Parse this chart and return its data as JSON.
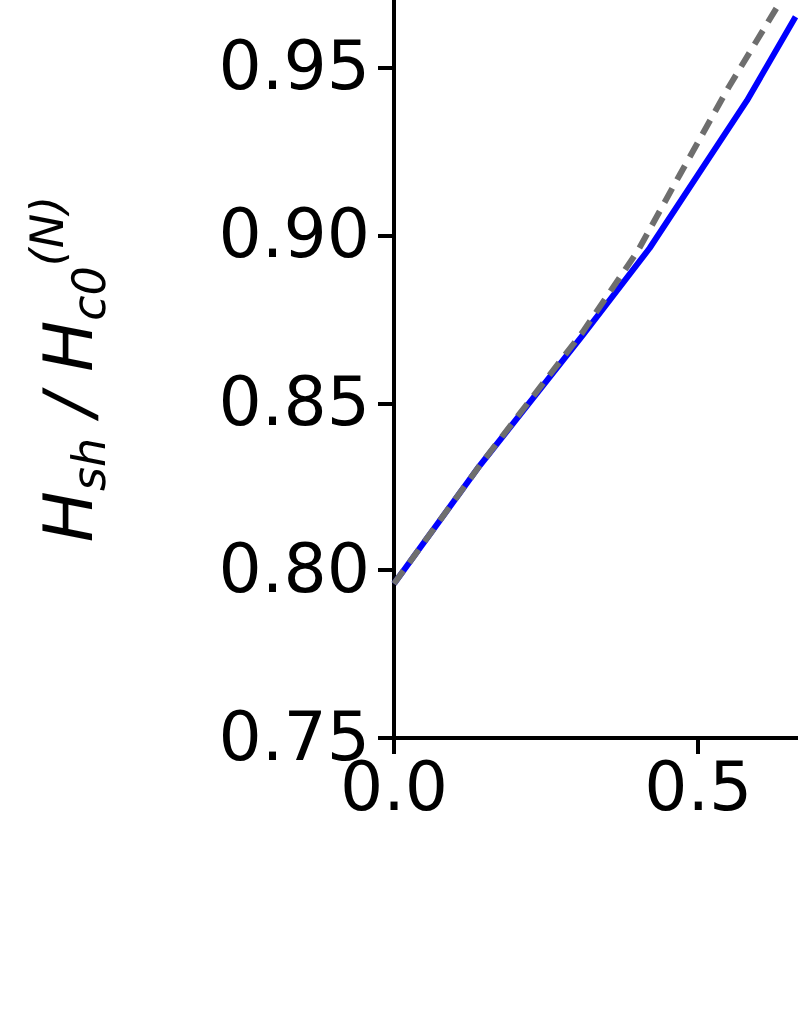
{
  "chart_data": {
    "type": "line",
    "ylabel": "H$_{sh}$ / H$_{c0}$$^{(N)}$",
    "xlim": [
      0,
      0.664
    ],
    "ylim": [
      0.75,
      0.97
    ],
    "xticks": [
      {
        "value": 0,
        "label": "0.0"
      },
      {
        "value": 0.5,
        "label": "0.5"
      }
    ],
    "yticks": [
      {
        "value": 0.75,
        "label": "0.75"
      },
      {
        "value": 0.8,
        "label": "0.80"
      },
      {
        "value": 0.85,
        "label": "0.85"
      },
      {
        "value": 0.9,
        "label": "0.90"
      },
      {
        "value": 0.95,
        "label": "0.95"
      }
    ],
    "marker": "none",
    "series": [
      {
        "color": "#0000ff",
        "line_style": "solid",
        "x": [
          0,
          0.14,
          0.31,
          0.42,
          0.5,
          0.58,
          0.66
        ],
        "values": [
          0.796,
          0.831,
          0.87,
          0.896,
          0.918,
          0.94,
          0.965
        ]
      },
      {
        "color": "#6e6e6e",
        "line_style": "dashed",
        "x": [
          0,
          0.14,
          0.31,
          0.4,
          0.47,
          0.55,
          0.63
        ],
        "values": [
          0.796,
          0.831,
          0.871,
          0.895,
          0.918,
          0.944,
          0.968
        ]
      }
    ]
  }
}
